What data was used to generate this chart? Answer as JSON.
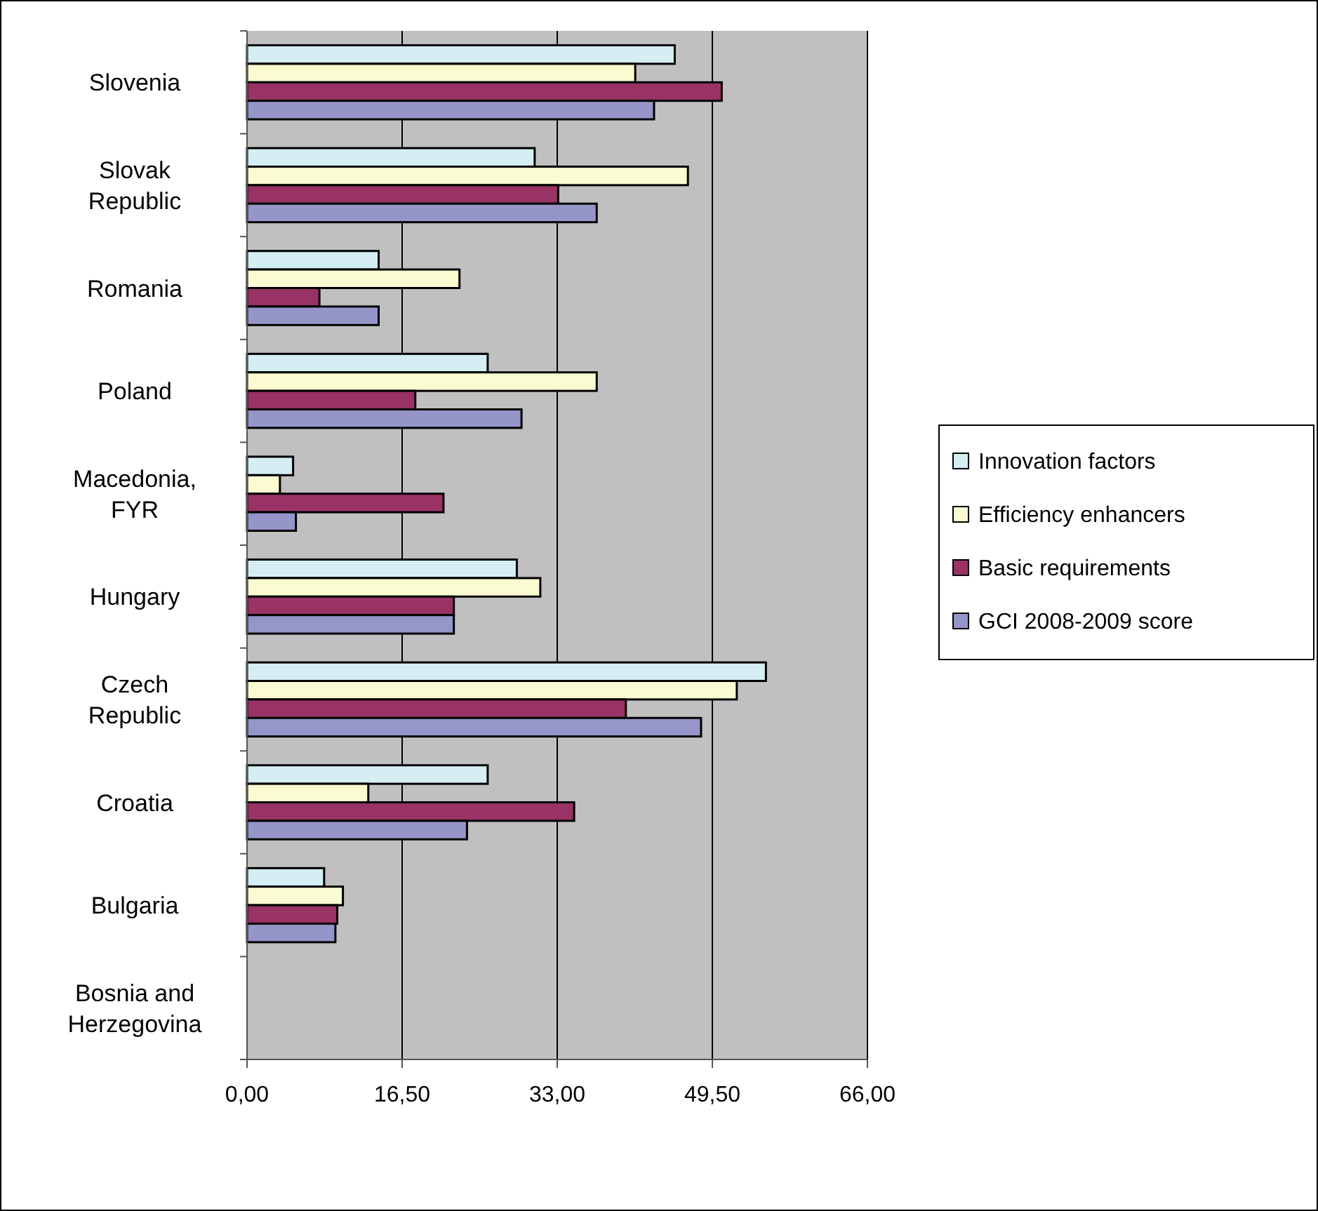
{
  "chart_data": {
    "type": "bar",
    "orientation": "horizontal",
    "categories": [
      "Slovenia",
      "Slovak Republic",
      "Romania",
      "Poland",
      "Macedonia, FYR",
      "Hungary",
      "Czech Republic",
      "Croatia",
      "Bulgaria",
      "Bosnia and Herzegovina"
    ],
    "series": [
      {
        "name": "Innovation factors",
        "color": "#d4eef4",
        "values": [
          45.5,
          30.6,
          14.0,
          25.6,
          4.9,
          28.7,
          55.2,
          25.6,
          8.2,
          null
        ]
      },
      {
        "name": "Efficiency enhancers",
        "color": "#fbfbd2",
        "values": [
          41.3,
          46.9,
          22.6,
          37.2,
          3.5,
          31.2,
          52.1,
          12.9,
          10.2,
          null
        ]
      },
      {
        "name": "Basic requirements",
        "color": "#993366",
        "values": [
          50.5,
          33.1,
          7.7,
          17.9,
          20.9,
          22.0,
          40.3,
          34.8,
          9.6,
          null
        ]
      },
      {
        "name": "GCI 2008-2009 score",
        "color": "#9595c9",
        "values": [
          43.3,
          37.2,
          14.0,
          29.2,
          5.2,
          22.0,
          48.3,
          23.4,
          9.4,
          null
        ]
      }
    ],
    "xlim": [
      0,
      66
    ],
    "xticks": [
      {
        "value": 0,
        "label": "0,00"
      },
      {
        "value": 16.5,
        "label": "16,50"
      },
      {
        "value": 33,
        "label": "33,00"
      },
      {
        "value": 49.5,
        "label": "49,50"
      },
      {
        "value": 66,
        "label": "66,00"
      }
    ],
    "grid": "x",
    "legend": "right"
  }
}
